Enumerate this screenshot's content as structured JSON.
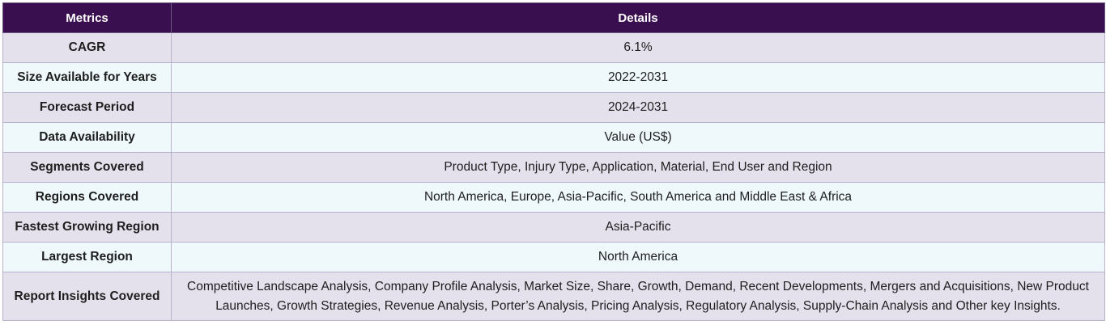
{
  "table": {
    "headers": [
      "Metrics",
      "Details"
    ],
    "rows": [
      {
        "metric": "CAGR",
        "details": "6.1%"
      },
      {
        "metric": "Size Available for Years",
        "details": "2022-2031"
      },
      {
        "metric": "Forecast Period",
        "details": "2024-2031"
      },
      {
        "metric": "Data Availability",
        "details": "Value (US$)"
      },
      {
        "metric": "Segments Covered",
        "details": "Product Type, Injury Type, Application, Material, End User and Region"
      },
      {
        "metric": "Regions Covered",
        "details": "North America, Europe, Asia-Pacific, South America and Middle East & Africa"
      },
      {
        "metric": "Fastest Growing Region",
        "details": "Asia-Pacific"
      },
      {
        "metric": "Largest Region",
        "details": "North America"
      },
      {
        "metric": "Report Insights Covered",
        "details": "Competitive Landscape Analysis, Company Profile Analysis, Market Size, Share, Growth, Demand, Recent Developments, Mergers and Acquisitions, New Product Launches, Growth Strategies, Revenue Analysis, Porter’s Analysis, Pricing Analysis, Regulatory Analysis, Supply-Chain Analysis and Other key Insights."
      }
    ]
  },
  "colors": {
    "header_bg": "#3a0f4f",
    "row_odd_bg": "#e4e0ec",
    "row_even_bg": "#eff8fb",
    "border": "#b9b2cc"
  }
}
